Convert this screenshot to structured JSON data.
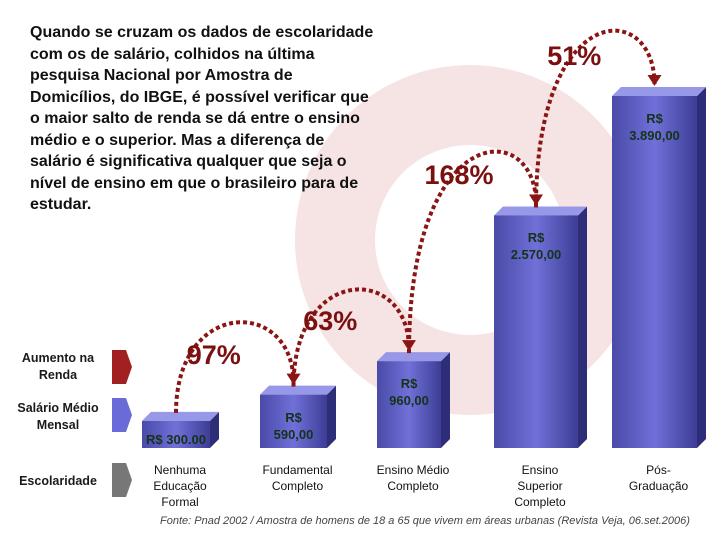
{
  "chart_data": {
    "type": "bar3d",
    "intro_lines": [
      "Quando se cruzam os dados de escolaridade",
      "com os de salário, colhidos na última",
      "pesquisa Nacional por Amostra de",
      "Domicílios, do IBGE, é possível verificar que",
      "o maior salto de renda se dá entre o ensino",
      "médio e o superior. Mas a diferença de",
      "salário é significativa qualquer que seja o",
      "nível de ensino em que o brasileiro para de",
      "estudar."
    ],
    "legend": [
      "Aumento na Renda",
      "Salário Médio Mensal",
      "Escolaridade"
    ],
    "categories": [
      "Nenhuma Educação Formal",
      "Fundamental Completo",
      "Ensino Médio Completo",
      "Ensino Superior Completo",
      "Pós-Graduação"
    ],
    "values": [
      300,
      590,
      960,
      2570,
      3890
    ],
    "value_labels": [
      "R$ 300.00",
      "R$ 590,00",
      "R$ 960,00",
      "R$ 2.570,00",
      "R$ 3.890,00"
    ],
    "color": "#5a5ac8",
    "increases": {
      "values": [
        97,
        63,
        168,
        51
      ],
      "value_labels": [
        "97%",
        "63%",
        "168%",
        "51%"
      ],
      "color": "#8b1414"
    },
    "source": "Fonte: Pnad 2002 / Amostra de homens de 18 a 65 que vivem em áreas urbanas (Revista Veja, 06.set.2006)"
  }
}
